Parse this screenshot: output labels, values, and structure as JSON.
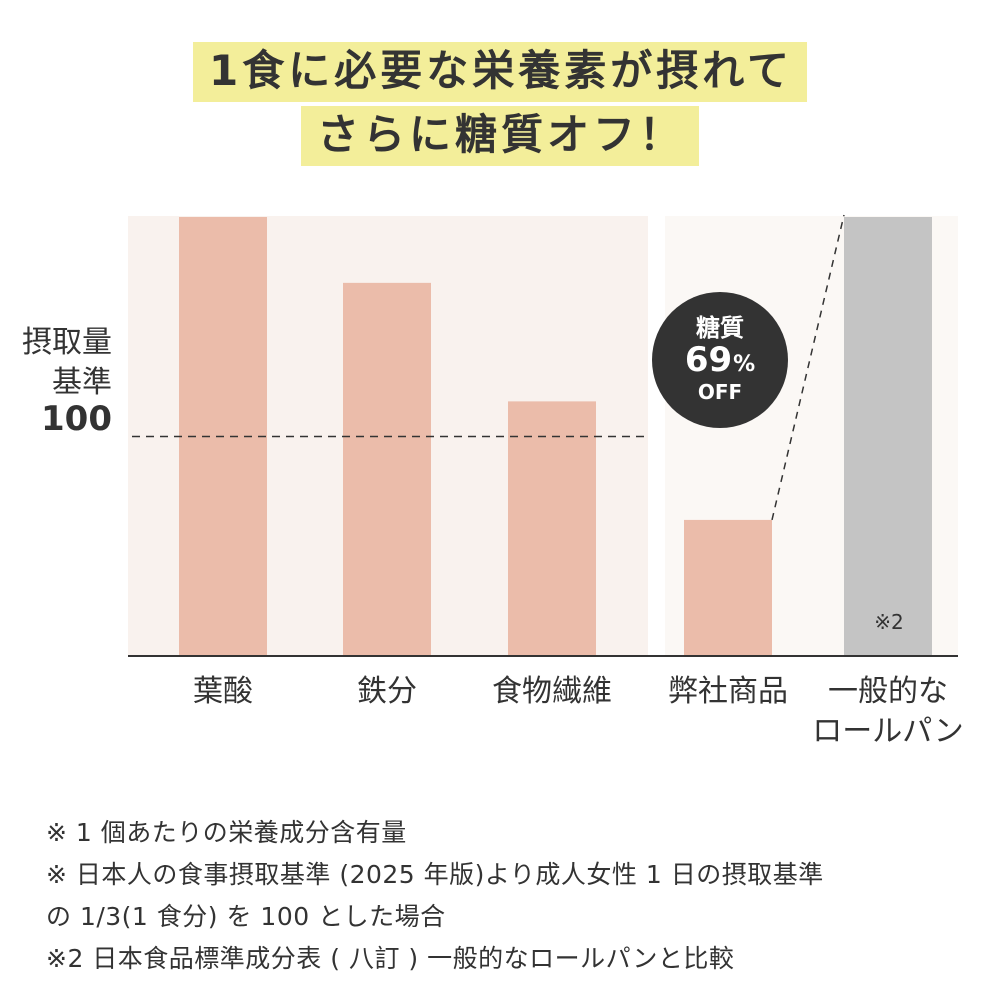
{
  "title": {
    "line1": "1食に必要な栄養素が摂れて",
    "line2": "さらに糖質オフ！",
    "highlight_color": "#f3ee9a"
  },
  "chart_data": {
    "type": "bar",
    "ylabel": [
      "摂取量",
      "基準"
    ],
    "reference_line": {
      "value": 100,
      "label": "100",
      "style": "dashed"
    },
    "groups": [
      {
        "name": "nutrients",
        "background": "#f9f2ee"
      },
      {
        "name": "carbohydrate",
        "background": "#fbf8f5"
      }
    ],
    "categories": [
      {
        "lines": [
          "葉酸"
        ],
        "value": 200,
        "color": "#ebbcaa",
        "group": 0
      },
      {
        "lines": [
          "鉄分"
        ],
        "value": 170,
        "color": "#ebbcaa",
        "group": 0
      },
      {
        "lines": [
          "食物繊維"
        ],
        "value": 116,
        "color": "#ebbcaa",
        "group": 0
      },
      {
        "lines": [
          "弊社商品"
        ],
        "value": 62,
        "color": "#ebbcaa",
        "group": 1
      },
      {
        "lines": [
          "一般的な",
          "ロールパン"
        ],
        "value": 200,
        "color": "#c4c4c4",
        "group": 1,
        "note": "※2"
      }
    ],
    "callout": {
      "label": "糖質",
      "value": "69",
      "unit": "%",
      "suffix": "OFF",
      "background": "#333333"
    },
    "axis_color": "#333333"
  },
  "notes": [
    "※ 1 個あたりの栄養成分含有量",
    "※ 日本人の食事摂取基準 (2025 年版)より成人女性 1 日の摂取基準",
    "の 1/3(1 食分) を 100 とした場合",
    "※2 日本食品標準成分表 ( 八訂 ) 一般的なロールパンと比較"
  ]
}
